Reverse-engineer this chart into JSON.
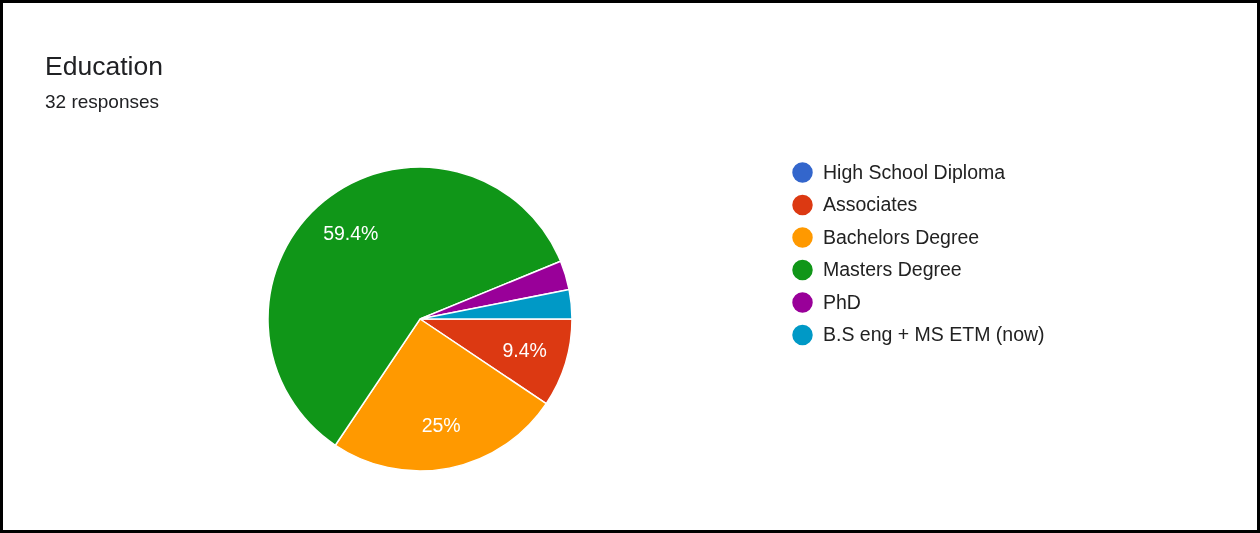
{
  "chart_data": {
    "type": "pie",
    "title": "Education",
    "subtitle": "32 responses",
    "categories": [
      "High School Diploma",
      "Associates",
      "Bachelors Degree",
      "Masters Degree",
      "PhD",
      "B.S eng + MS ETM (now)"
    ],
    "values": [
      0,
      9.4,
      25,
      59.4,
      3.1,
      3.1
    ],
    "colors": [
      "#3366cc",
      "#dc3912",
      "#ff9900",
      "#109618",
      "#990099",
      "#0099c6"
    ],
    "value_labels": [
      null,
      "9.4%",
      "25%",
      "59.4%",
      null,
      null
    ],
    "legend": "right"
  }
}
